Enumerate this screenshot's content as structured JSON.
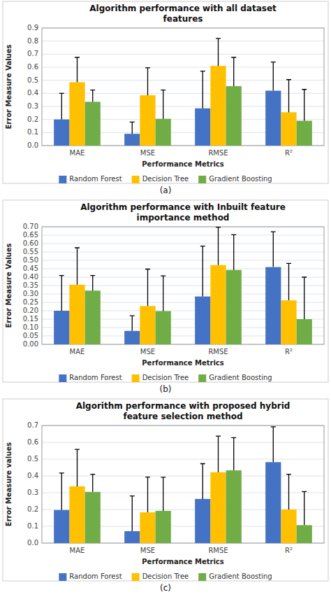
{
  "chart_data": [
    {
      "type": "bar",
      "title": "Algorithm performance with all dataset\nfeatures",
      "x_label": "Performance Metrics",
      "y_label": "Error Measure Values",
      "categories": [
        "MAE",
        "MSE",
        "RMSE",
        "R²"
      ],
      "series": [
        {
          "name": "Random Forest",
          "color": "#4472C4",
          "values": [
            0.2,
            0.09,
            0.285,
            0.42
          ],
          "errors": [
            0.2,
            0.09,
            0.285,
            0.22
          ]
        },
        {
          "name": "Decision Tree",
          "color": "#FFC000",
          "values": [
            0.485,
            0.385,
            0.61,
            0.255
          ],
          "errors": [
            0.19,
            0.21,
            0.21,
            0.25
          ]
        },
        {
          "name": "Gradient Boosting",
          "color": "#70AD47",
          "values": [
            0.335,
            0.205,
            0.455,
            0.19
          ],
          "errors": [
            0.09,
            0.22,
            0.22,
            0.24
          ]
        }
      ],
      "ylim": [
        0,
        0.9
      ],
      "yticks": [
        {
          "value": 0,
          "label": "0.0"
        },
        0.1,
        0.2,
        0.3,
        0.4,
        0.5,
        0.6,
        0.7,
        0.8,
        0.9
      ],
      "grid": true,
      "legend": "bottom",
      "annotations": [
        "(a)"
      ]
    },
    {
      "type": "bar",
      "title": "Algorithm performance with Inbuilt feature\nimportance method",
      "x_label": "Performance Metrics",
      "y_label": "Error Measure Values",
      "categories": [
        "MAE",
        "MSE",
        "RMSE",
        "R²"
      ],
      "series": [
        {
          "name": "Random Forest",
          "color": "#4472C4",
          "values": [
            0.2,
            0.08,
            0.285,
            0.46
          ],
          "errors": [
            0.21,
            0.09,
            0.3,
            0.21
          ]
        },
        {
          "name": "Decision Tree",
          "color": "#FFC000",
          "values": [
            0.355,
            0.228,
            0.472,
            0.262
          ],
          "errors": [
            0.22,
            0.22,
            0.225,
            0.22
          ]
        },
        {
          "name": "Gradient Boosting",
          "color": "#70AD47",
          "values": [
            0.32,
            0.198,
            0.443,
            0.15
          ],
          "errors": [
            0.09,
            0.21,
            0.21,
            0.25
          ]
        }
      ],
      "ylim": [
        0,
        0.7
      ],
      "yticks": [
        {
          "value": 0,
          "label": "0.00"
        },
        0.05,
        {
          "value": 0.1,
          "label": "0.10"
        },
        0.15,
        {
          "value": 0.2,
          "label": "0.20"
        },
        0.25,
        {
          "value": 0.3,
          "label": "0.30"
        },
        0.35,
        {
          "value": 0.4,
          "label": "0.40"
        },
        0.45,
        {
          "value": 0.5,
          "label": "0.50"
        },
        0.55,
        {
          "value": 0.6,
          "label": "0.60"
        },
        0.65,
        {
          "value": 0.7,
          "label": "0.70"
        }
      ],
      "grid": true,
      "legend": "bottom",
      "annotations": [
        "(b)"
      ]
    },
    {
      "type": "bar",
      "title": "Algorithm performance with proposed hybrid\nfeature selection method",
      "x_label": "Performance Metrics",
      "y_label": "Error Measure values",
      "categories": [
        "MAE",
        "MSE",
        "RMSE",
        "R²"
      ],
      "series": [
        {
          "name": "Random Forest",
          "color": "#4472C4",
          "values": [
            0.197,
            0.071,
            0.263,
            0.482
          ],
          "errors": [
            0.22,
            0.21,
            0.21,
            0.21
          ]
        },
        {
          "name": "Decision Tree",
          "color": "#FFC000",
          "values": [
            0.338,
            0.183,
            0.422,
            0.2
          ],
          "errors": [
            0.22,
            0.21,
            0.215,
            0.21
          ]
        },
        {
          "name": "Gradient Boosting",
          "color": "#70AD47",
          "values": [
            0.305,
            0.192,
            0.433,
            0.107
          ],
          "errors": [
            0.105,
            0.2,
            0.195,
            0.2
          ]
        }
      ],
      "ylim": [
        0,
        0.7
      ],
      "yticks": [
        {
          "value": 0,
          "label": "0.0"
        },
        0.1,
        0.2,
        0.3,
        0.4,
        0.5,
        0.6,
        0.7
      ],
      "grid": true,
      "legend": "bottom",
      "annotations": [
        "(c)"
      ]
    }
  ]
}
